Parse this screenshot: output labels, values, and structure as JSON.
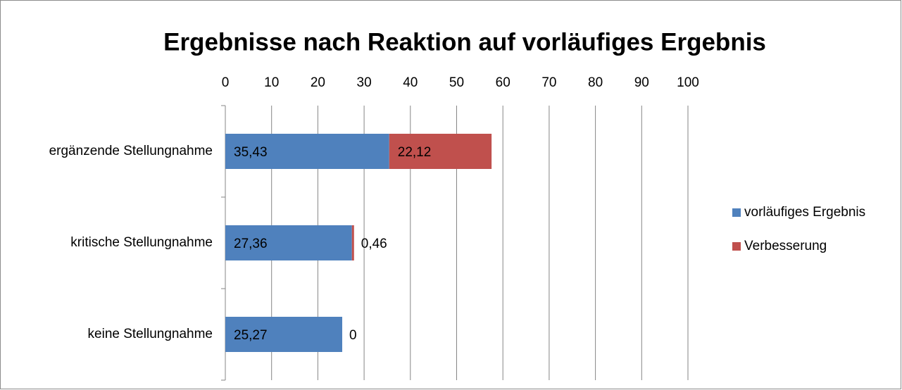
{
  "chart_data": {
    "type": "stacked-barh",
    "title": "Ergebnisse nach Reaktion auf vorläufiges Ergebnis",
    "categories": [
      "ergänzende Stellungnahme",
      "kritische Stellungnahme",
      "keine Stellungnahme"
    ],
    "series": [
      {
        "name": "vorläufiges Ergebnis",
        "color": "#4f81bd",
        "values": [
          35.43,
          27.36,
          25.27
        ],
        "value_labels": [
          "35,43",
          "27,36",
          "25,27"
        ]
      },
      {
        "name": "Verbesserung",
        "color": "#c0504d",
        "values": [
          22.12,
          0.46,
          0
        ],
        "value_labels": [
          "22,12",
          "0,46",
          "0"
        ]
      }
    ],
    "xlim": [
      0,
      100
    ],
    "xticks": [
      0,
      10,
      20,
      30,
      40,
      50,
      60,
      70,
      80,
      90,
      100
    ],
    "grid": true,
    "legend": "right"
  }
}
